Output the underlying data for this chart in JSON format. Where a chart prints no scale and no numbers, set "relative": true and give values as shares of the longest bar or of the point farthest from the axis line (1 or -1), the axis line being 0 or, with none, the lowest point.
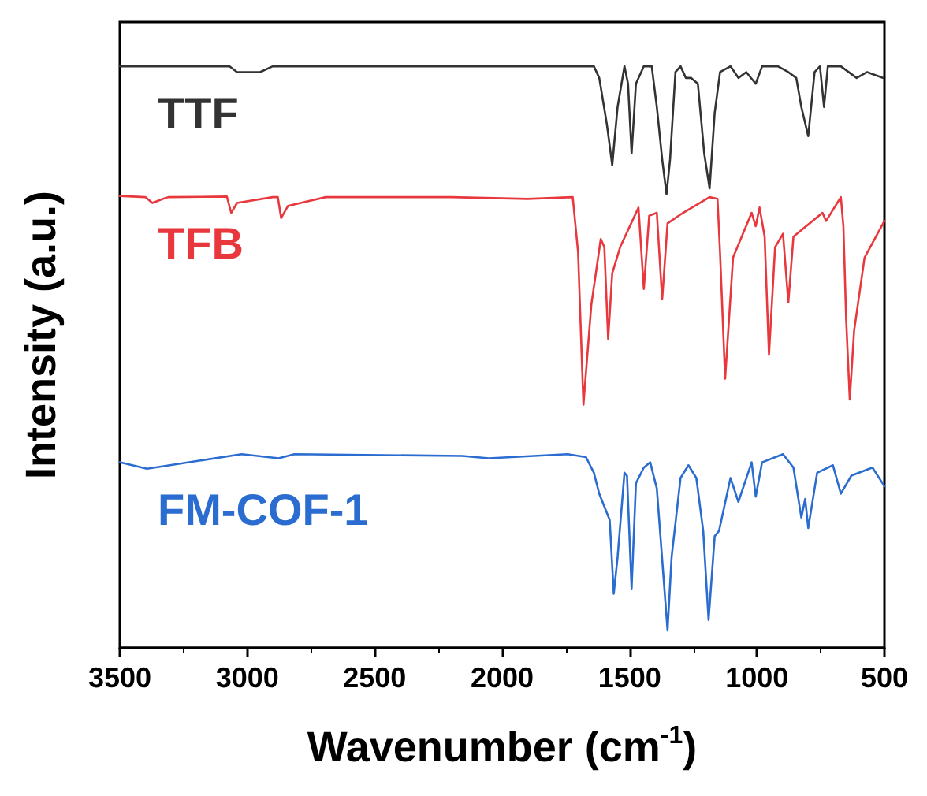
{
  "chart_data": {
    "type": "line",
    "relative": true,
    "xlabel": "Wavenumber (cm$^{-1}$)",
    "ylabel": "Intensity (a.u.)",
    "xlim": [
      3500,
      500
    ],
    "xticks": [
      3500,
      3000,
      2500,
      2000,
      1500,
      1000,
      500
    ],
    "grid": false,
    "legend": false,
    "marker": "none",
    "line_style": "solid",
    "series": [
      {
        "name": "TTF",
        "color": "#333333",
        "x": [
          3500,
          3070,
          3040,
          2950,
          2900,
          2500,
          2100,
          1640,
          1619,
          1589,
          1568,
          1547,
          1520,
          1506,
          1492,
          1475,
          1444,
          1413,
          1393,
          1372,
          1355,
          1341,
          1320,
          1300,
          1279,
          1259,
          1232,
          1207,
          1186,
          1166,
          1145,
          1104,
          1073,
          1042,
          1005,
          980,
          918,
          877,
          846,
          826,
          799,
          774,
          753,
          737,
          722,
          671,
          609,
          568,
          506
        ],
        "values": [
          1,
          1,
          0.99,
          0.99,
          1,
          1,
          1,
          1,
          0.98,
          0.9,
          0.83,
          0.93,
          1,
          0.97,
          0.85,
          0.97,
          1,
          1,
          0.93,
          0.84,
          0.78,
          0.84,
          0.99,
          1,
          0.98,
          0.98,
          0.97,
          0.85,
          0.79,
          0.92,
          0.99,
          1,
          0.98,
          0.99,
          0.97,
          1,
          1,
          0.99,
          0.98,
          0.93,
          0.88,
          0.99,
          1,
          0.93,
          1,
          1,
          0.98,
          0.99,
          0.98
        ]
      },
      {
        "name": "TFB",
        "color": "#e8383d",
        "x": [
          3500,
          3400,
          3372,
          3330,
          3310,
          3080,
          3063,
          3040,
          2900,
          2880,
          2867,
          2840,
          2692,
          2200,
          1900,
          1723,
          1702,
          1681,
          1650,
          1613,
          1599,
          1584,
          1568,
          1537,
          1465,
          1444,
          1423,
          1393,
          1372,
          1351,
          1290,
          1186,
          1155,
          1145,
          1125,
          1094,
          1021,
          1005,
          990,
          970,
          953,
          929,
          898,
          877,
          857,
          743,
          729,
          671,
          661,
          650,
          636,
          619,
          578,
          500
        ],
        "values": [
          0.777,
          0.775,
          0.765,
          0.772,
          0.775,
          0.776,
          0.748,
          0.765,
          0.775,
          0.775,
          0.739,
          0.76,
          0.775,
          0.775,
          0.772,
          0.775,
          0.68,
          0.418,
          0.59,
          0.703,
          0.689,
          0.531,
          0.644,
          0.689,
          0.757,
          0.617,
          0.743,
          0.748,
          0.599,
          0.73,
          0.748,
          0.775,
          0.772,
          0.68,
          0.463,
          0.671,
          0.748,
          0.725,
          0.757,
          0.707,
          0.504,
          0.689,
          0.712,
          0.594,
          0.707,
          0.748,
          0.734,
          0.775,
          0.725,
          0.563,
          0.427,
          0.545,
          0.671,
          0.734
        ]
      },
      {
        "name": "FM-COF-1",
        "color": "#2a6ccf",
        "x": [
          3500,
          3393,
          3022,
          2877,
          2815,
          2156,
          2052,
          1743,
          1671,
          1640,
          1619,
          1578,
          1562,
          1547,
          1520,
          1510,
          1492,
          1475,
          1444,
          1419,
          1393,
          1368,
          1351,
          1335,
          1300,
          1269,
          1238,
          1211,
          1190,
          1166,
          1149,
          1104,
          1073,
          1021,
          1005,
          980,
          898,
          857,
          826,
          811,
          799,
          764,
          702,
          671,
          630,
          547,
          500
        ],
        "values": [
          0.319,
          0.308,
          0.333,
          0.326,
          0.333,
          0.33,
          0.326,
          0.333,
          0.328,
          0.301,
          0.265,
          0.22,
          0.093,
          0.156,
          0.301,
          0.296,
          0.102,
          0.283,
          0.31,
          0.319,
          0.274,
          0.129,
          0.03,
          0.156,
          0.292,
          0.314,
          0.292,
          0.201,
          0.048,
          0.192,
          0.201,
          0.292,
          0.251,
          0.319,
          0.26,
          0.319,
          0.333,
          0.31,
          0.224,
          0.256,
          0.206,
          0.301,
          0.314,
          0.265,
          0.296,
          0.31,
          0.278
        ]
      }
    ]
  }
}
